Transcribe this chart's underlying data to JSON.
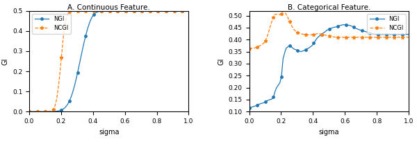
{
  "left": {
    "title": "A. Continuous Feature.",
    "xlabel": "sigma",
    "ylabel": "GI",
    "ylim": [
      0.0,
      0.5
    ],
    "xlim": [
      0.0,
      1.0
    ],
    "yticks": [
      0.0,
      0.1,
      0.2,
      0.3,
      0.4,
      0.5
    ],
    "xticks": [
      0.0,
      0.2,
      0.4,
      0.6,
      0.8,
      1.0
    ],
    "ngi_color": "#1f77b4",
    "ncgi_color": "#ff7f0e"
  },
  "right": {
    "title": "B. Categorical Feature.",
    "xlabel": "sigma",
    "ylabel": "GI",
    "ylim": [
      0.1,
      0.52
    ],
    "xlim": [
      0.0,
      1.0
    ],
    "yticks": [
      0.1,
      0.15,
      0.2,
      0.25,
      0.3,
      0.35,
      0.4,
      0.45,
      0.5
    ],
    "xticks": [
      0.0,
      0.2,
      0.4,
      0.6,
      0.8,
      1.0
    ],
    "ngi_color": "#1f77b4",
    "ncgi_color": "#ff7f0e"
  },
  "ngi_cont": [
    0.0,
    0.0,
    0.0,
    0.0,
    0.0,
    0.0,
    0.0,
    0.0,
    0.0,
    0.0,
    0.0,
    0.0,
    0.0,
    0.0,
    0.0,
    0.001,
    0.001,
    0.002,
    0.003,
    0.005,
    0.008,
    0.012,
    0.018,
    0.027,
    0.038,
    0.053,
    0.072,
    0.096,
    0.124,
    0.156,
    0.192,
    0.229,
    0.267,
    0.305,
    0.341,
    0.374,
    0.404,
    0.43,
    0.452,
    0.469,
    0.481,
    0.489,
    0.493,
    0.496,
    0.498,
    0.499,
    0.499,
    0.499,
    0.499,
    0.5,
    0.5,
    0.5,
    0.5,
    0.5,
    0.5,
    0.5,
    0.5,
    0.5,
    0.5,
    0.5,
    0.5,
    0.5,
    0.5,
    0.5,
    0.5,
    0.5,
    0.5,
    0.5,
    0.5,
    0.5,
    0.5,
    0.5,
    0.5,
    0.5,
    0.5,
    0.5,
    0.5,
    0.5,
    0.5,
    0.5,
    0.5,
    0.5,
    0.5,
    0.5,
    0.5,
    0.5,
    0.5,
    0.5,
    0.5,
    0.5,
    0.5,
    0.5,
    0.5,
    0.5,
    0.5,
    0.5,
    0.5,
    0.5,
    0.5,
    0.5
  ],
  "ncgi_cont": [
    0.0,
    0.0,
    0.0,
    0.0,
    0.0,
    0.0,
    0.0,
    0.0,
    0.0,
    0.0,
    0.0,
    0.0,
    0.001,
    0.002,
    0.005,
    0.012,
    0.028,
    0.06,
    0.113,
    0.185,
    0.27,
    0.355,
    0.422,
    0.463,
    0.485,
    0.494,
    0.498,
    0.499,
    0.5,
    0.5,
    0.5,
    0.5,
    0.5,
    0.5,
    0.5,
    0.5,
    0.5,
    0.5,
    0.5,
    0.5,
    0.5,
    0.5,
    0.5,
    0.5,
    0.5,
    0.5,
    0.5,
    0.5,
    0.5,
    0.5,
    0.5,
    0.5,
    0.5,
    0.5,
    0.5,
    0.5,
    0.5,
    0.5,
    0.5,
    0.5,
    0.5,
    0.5,
    0.5,
    0.5,
    0.5,
    0.5,
    0.5,
    0.5,
    0.5,
    0.5,
    0.5,
    0.5,
    0.5,
    0.5,
    0.5,
    0.5,
    0.5,
    0.5,
    0.5,
    0.5,
    0.5,
    0.5,
    0.5,
    0.5,
    0.5,
    0.5,
    0.5,
    0.5,
    0.5,
    0.5,
    0.5,
    0.5,
    0.5,
    0.5,
    0.5,
    0.5,
    0.5,
    0.5,
    0.5,
    0.5
  ],
  "ngi_cat": [
    0.115,
    0.117,
    0.12,
    0.122,
    0.124,
    0.127,
    0.13,
    0.133,
    0.135,
    0.137,
    0.14,
    0.145,
    0.148,
    0.15,
    0.152,
    0.16,
    0.183,
    0.2,
    0.21,
    0.22,
    0.245,
    0.32,
    0.345,
    0.365,
    0.37,
    0.375,
    0.372,
    0.365,
    0.36,
    0.358,
    0.355,
    0.352,
    0.35,
    0.352,
    0.355,
    0.358,
    0.362,
    0.365,
    0.37,
    0.375,
    0.385,
    0.395,
    0.405,
    0.412,
    0.418,
    0.422,
    0.428,
    0.432,
    0.438,
    0.442,
    0.445,
    0.448,
    0.45,
    0.452,
    0.453,
    0.455,
    0.458,
    0.46,
    0.462,
    0.462,
    0.462,
    0.46,
    0.46,
    0.458,
    0.455,
    0.452,
    0.448,
    0.445,
    0.442,
    0.44,
    0.438,
    0.436,
    0.434,
    0.432,
    0.43,
    0.428,
    0.426,
    0.424,
    0.423,
    0.422,
    0.422,
    0.422,
    0.422,
    0.422,
    0.422,
    0.422,
    0.422,
    0.422,
    0.422,
    0.422,
    0.422,
    0.422,
    0.422,
    0.422,
    0.422,
    0.422,
    0.422,
    0.422,
    0.422,
    0.422
  ],
  "ncgi_cat": [
    0.363,
    0.364,
    0.364,
    0.365,
    0.367,
    0.37,
    0.373,
    0.376,
    0.38,
    0.385,
    0.395,
    0.41,
    0.43,
    0.455,
    0.475,
    0.492,
    0.505,
    0.506,
    0.506,
    0.505,
    0.507,
    0.52,
    0.515,
    0.505,
    0.492,
    0.477,
    0.462,
    0.45,
    0.44,
    0.435,
    0.43,
    0.428,
    0.425,
    0.423,
    0.422,
    0.42,
    0.42,
    0.42,
    0.42,
    0.42,
    0.42,
    0.422,
    0.425,
    0.426,
    0.424,
    0.422,
    0.42,
    0.419,
    0.418,
    0.416,
    0.414,
    0.413,
    0.412,
    0.411,
    0.41,
    0.41,
    0.41,
    0.41,
    0.41,
    0.41,
    0.41,
    0.41,
    0.41,
    0.41,
    0.41,
    0.41,
    0.41,
    0.41,
    0.41,
    0.41,
    0.41,
    0.41,
    0.41,
    0.41,
    0.41,
    0.41,
    0.41,
    0.41,
    0.41,
    0.41,
    0.41,
    0.41,
    0.41,
    0.41,
    0.41,
    0.41,
    0.41,
    0.41,
    0.41,
    0.41,
    0.41,
    0.41,
    0.41,
    0.41,
    0.41,
    0.41,
    0.41,
    0.41,
    0.41,
    0.41
  ]
}
